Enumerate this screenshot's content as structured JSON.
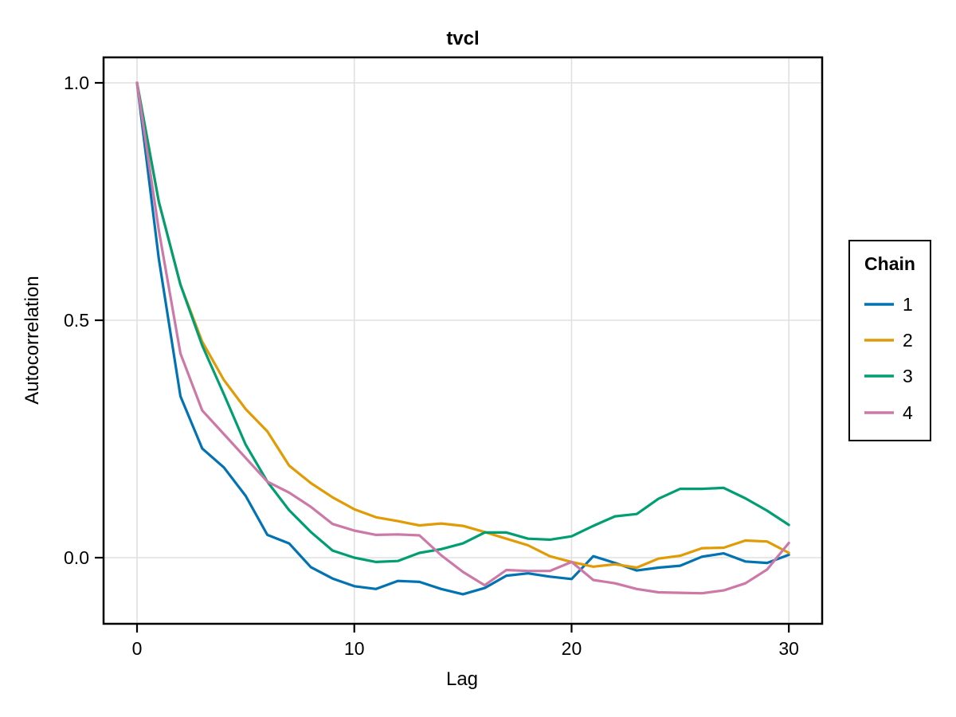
{
  "figure": {
    "title": "tvcl",
    "background": "#ffffff",
    "frame_color": "#000000",
    "grid_color": "#e0e0e0"
  },
  "legend": {
    "title": "Chain",
    "entries": [
      {
        "label": "1",
        "color": "#0173b2"
      },
      {
        "label": "2",
        "color": "#e09b05"
      },
      {
        "label": "3",
        "color": "#029e73"
      },
      {
        "label": "4",
        "color": "#cc79a7"
      }
    ]
  },
  "chart_data": {
    "type": "line",
    "title": "tvcl",
    "xlabel": "Lag",
    "ylabel": "Autocorrelation",
    "grid": true,
    "legend_title": "Chain",
    "legend_position": "right-outside",
    "xlim": [
      -1.55,
      31.55
    ],
    "ylim": [
      -0.14,
      1.055
    ],
    "x_ticks": [
      0,
      10,
      20,
      30
    ],
    "x_tick_labels": [
      "0",
      "10",
      "20",
      "30"
    ],
    "y_ticks": [
      1.0,
      0.5,
      0.0
    ],
    "y_tick_labels": [
      "1.0",
      "0.5",
      "0.0"
    ],
    "x": [
      0,
      1,
      2,
      3,
      4,
      5,
      6,
      7,
      8,
      9,
      10,
      11,
      12,
      13,
      14,
      15,
      16,
      17,
      18,
      19,
      20,
      21,
      22,
      23,
      24,
      25,
      26,
      27,
      28,
      29,
      30
    ],
    "series": [
      {
        "name": "1",
        "color": "#0173b2",
        "values": [
          1.0,
          0.63,
          0.34,
          0.23,
          0.19,
          0.13,
          0.048,
          0.03,
          -0.02,
          -0.044,
          -0.06,
          -0.066,
          -0.049,
          -0.051,
          -0.066,
          -0.077,
          -0.064,
          -0.038,
          -0.033,
          -0.04,
          -0.045,
          0.003,
          -0.011,
          -0.027,
          -0.021,
          -0.017,
          0.002,
          0.009,
          -0.008,
          -0.011,
          0.006
        ]
      },
      {
        "name": "2",
        "color": "#e09b05",
        "values": [
          1.0,
          0.75,
          0.575,
          0.455,
          0.374,
          0.313,
          0.266,
          0.194,
          0.157,
          0.127,
          0.102,
          0.085,
          0.077,
          0.068,
          0.072,
          0.067,
          0.054,
          0.04,
          0.026,
          0.003,
          -0.009,
          -0.019,
          -0.014,
          -0.021,
          -0.002,
          0.004,
          0.02,
          0.021,
          0.036,
          0.034,
          0.01
        ]
      },
      {
        "name": "3",
        "color": "#029e73",
        "values": [
          1.0,
          0.75,
          0.575,
          0.447,
          0.344,
          0.238,
          0.16,
          0.1,
          0.054,
          0.015,
          0.0,
          -0.009,
          -0.007,
          0.01,
          0.018,
          0.03,
          0.053,
          0.053,
          0.04,
          0.038,
          0.045,
          0.067,
          0.087,
          0.092,
          0.124,
          0.145,
          0.145,
          0.147,
          0.125,
          0.099,
          0.069
        ]
      },
      {
        "name": "4",
        "color": "#cc79a7",
        "values": [
          1.0,
          0.69,
          0.43,
          0.31,
          0.26,
          0.21,
          0.16,
          0.137,
          0.107,
          0.071,
          0.057,
          0.048,
          0.049,
          0.047,
          0.005,
          -0.03,
          -0.058,
          -0.026,
          -0.028,
          -0.028,
          -0.009,
          -0.047,
          -0.054,
          -0.066,
          -0.073,
          -0.074,
          -0.075,
          -0.069,
          -0.054,
          -0.025,
          0.031
        ]
      }
    ]
  }
}
